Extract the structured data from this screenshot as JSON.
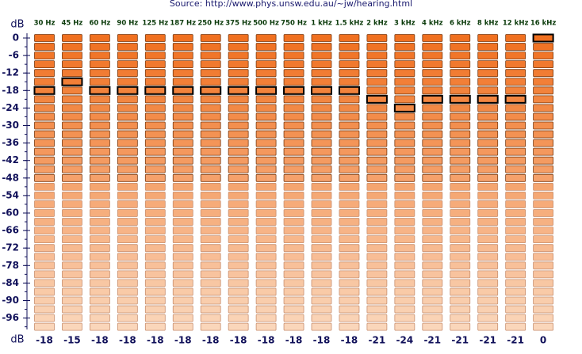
{
  "source": "Source: http://www.phys.unsw.edu.au/~jw/hearing.html",
  "unit": "dB",
  "frequencies": [
    "30 Hz",
    "45 Hz",
    "60 Hz",
    "90 Hz",
    "125 Hz",
    "187 Hz",
    "250 Hz",
    "375 Hz",
    "500 Hz",
    "750 Hz",
    "1 kHz",
    "1.5 kHz",
    "2 kHz",
    "3 kHz",
    "4 kHz",
    "6 kHz",
    "8 kHz",
    "12 kHz",
    "16 kHz"
  ],
  "levels": [
    0,
    -3,
    -6,
    -9,
    -12,
    -15,
    -18,
    -21,
    -24,
    -27,
    -30,
    -33,
    -36,
    -39,
    -42,
    -45,
    -48,
    -51,
    -54,
    -57,
    -60,
    -63,
    -66,
    -69,
    -72,
    -75,
    -78,
    -81,
    -84,
    -87,
    -90,
    -93,
    -96,
    -99
  ],
  "yticks": [
    0,
    -6,
    -12,
    -18,
    -24,
    -30,
    -36,
    -42,
    -48,
    -54,
    -60,
    -66,
    -72,
    -78,
    -84,
    -90,
    -96
  ],
  "selected": [
    -18,
    -15,
    -18,
    -18,
    -18,
    -18,
    -18,
    -18,
    -18,
    -18,
    -18,
    -18,
    -21,
    -24,
    -21,
    -21,
    -21,
    -21,
    0
  ]
}
